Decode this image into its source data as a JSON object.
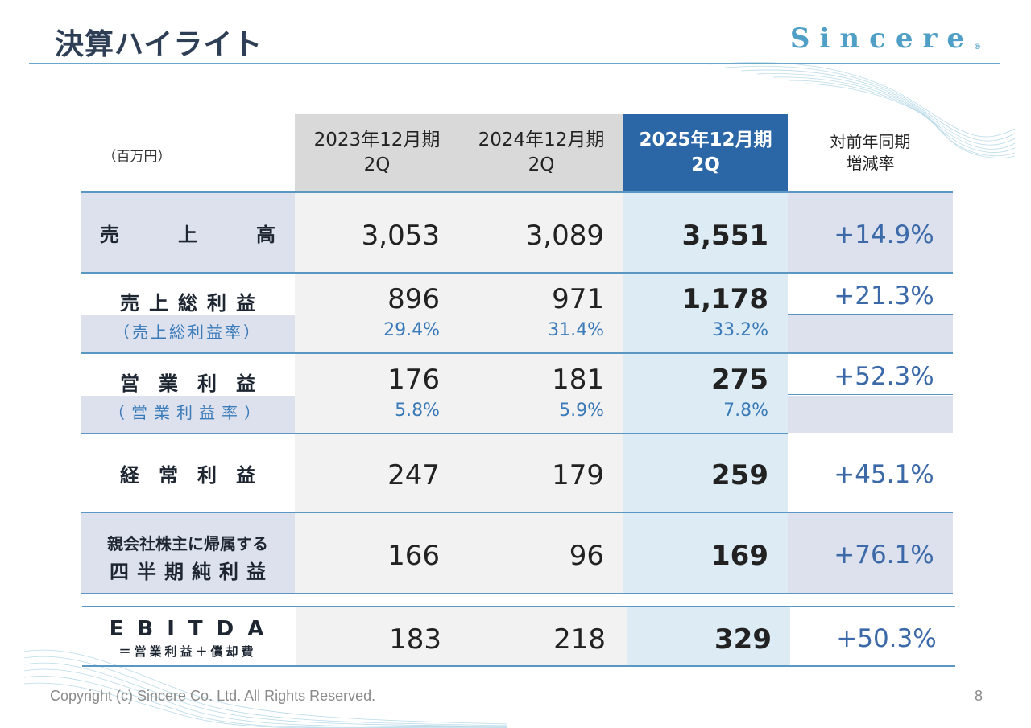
{
  "header": {
    "title": "決算ハイライト",
    "logo_text": "Sincere",
    "logo_mark": "®"
  },
  "table": {
    "unit_label": "（百万円）",
    "columns": [
      {
        "line1": "2023年12月期",
        "line2": "2Q"
      },
      {
        "line1": "2024年12月期",
        "line2": "2Q"
      },
      {
        "line1": "2025年12月期",
        "line2": "2Q"
      }
    ],
    "yoy_header": {
      "line1": "対前年同期",
      "line2": "増減率"
    },
    "rows": [
      {
        "label": "売　　上　　高",
        "values": [
          "3,053",
          "3,089",
          "3,551"
        ],
        "yoy": "+14.9%"
      },
      {
        "label": "売上総利益",
        "values": [
          "896",
          "971",
          "1,178"
        ],
        "yoy": "+21.3%",
        "sub_label": "（売上総利益率）",
        "sub_values": [
          "29.4%",
          "31.4%",
          "33.2%"
        ]
      },
      {
        "label": "営　業　利　益",
        "values": [
          "176",
          "181",
          "275"
        ],
        "yoy": "+52.3%",
        "sub_label": "（営業利益率）",
        "sub_values": [
          "5.8%",
          "5.9%",
          "7.8%"
        ]
      },
      {
        "label": "経　常　利　益",
        "values": [
          "247",
          "179",
          "259"
        ],
        "yoy": "+45.1%"
      },
      {
        "label_line1": "親会社株主に帰属する",
        "label_line2": "四半期純利益",
        "values": [
          "166",
          "96",
          "169"
        ],
        "yoy": "+76.1%"
      },
      {
        "label_line1": "EBITDA",
        "label_line2": "＝営業利益＋償却費",
        "values": [
          "183",
          "218",
          "329"
        ],
        "yoy": "+50.3%"
      }
    ]
  },
  "colors": {
    "title": "#2e3f55",
    "header_gray": "#d9d9d9",
    "header_selected": "#2b66a6",
    "selected_column_bg": "#ddecf4",
    "data_bg": "#f2f2f2",
    "label_bg": "#dde1ee",
    "accent_blue": "#3a7ab8"
  },
  "footer": {
    "copyright": "Copyright (c) Sincere Co. Ltd. All Rights Reserved.",
    "page_number": "8"
  }
}
